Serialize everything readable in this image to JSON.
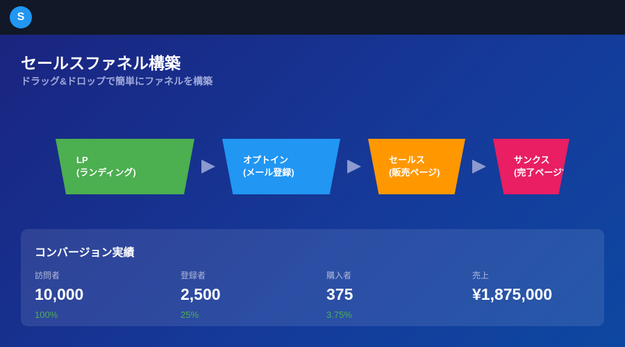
{
  "header": {
    "logo": "S"
  },
  "page": {
    "title": "セールスファネル構築",
    "subtitle": "ドラッグ&ドロップで簡単にファネルを構築"
  },
  "funnel": {
    "stages": [
      {
        "line1": "LP",
        "line2": "(ランディング)",
        "color": "#4caf50"
      },
      {
        "line1": "オプトイン",
        "line2": "(メール登録)",
        "color": "#2196f3"
      },
      {
        "line1": "セールス",
        "line2": "(販売ページ)",
        "color": "#ff9800"
      },
      {
        "line1": "サンクス",
        "line2": "(完了ページ)",
        "color": "#e91e63"
      }
    ],
    "arrow_icon": "triangle-right"
  },
  "conversion": {
    "title": "コンバージョン実績",
    "metrics": [
      {
        "label": "訪問者",
        "value": "10,000",
        "pct": "100%"
      },
      {
        "label": "登録者",
        "value": "2,500",
        "pct": "25%"
      },
      {
        "label": "購入者",
        "value": "375",
        "pct": "3.75%"
      },
      {
        "label": "売上",
        "value": "¥1,875,000"
      }
    ]
  }
}
